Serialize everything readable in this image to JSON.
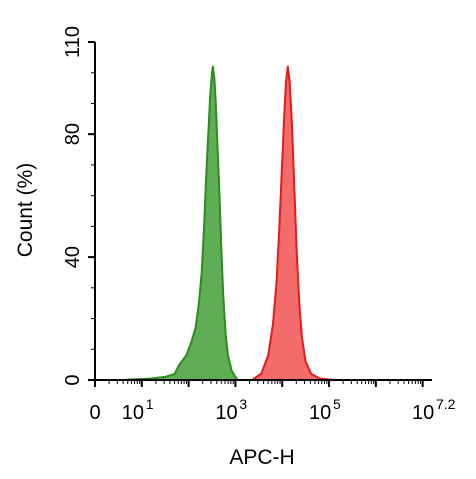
{
  "chart_data": {
    "type": "area",
    "xlabel": "APC-H",
    "ylabel": "Count  (%)",
    "xscale": "log",
    "xlim": [
      0,
      7.2
    ],
    "ylim": [
      0,
      110
    ],
    "grid": false,
    "legend": "none",
    "x_ticks": [
      {
        "base": "0",
        "exp": ""
      },
      {
        "base": "10",
        "exp": "1"
      },
      {
        "base": "10",
        "exp": "3"
      },
      {
        "base": "10",
        "exp": "5"
      },
      {
        "base": "10",
        "exp": "7.2"
      }
    ],
    "y_ticks": [
      "0",
      "40",
      "80",
      "110"
    ],
    "series": [
      {
        "color": "#2e8b1f",
        "fill": "#5fae55",
        "points": [
          [
            0.6,
            0
          ],
          [
            1.2,
            0.5
          ],
          [
            1.5,
            1
          ],
          [
            1.7,
            2
          ],
          [
            1.8,
            5
          ],
          [
            1.95,
            8
          ],
          [
            2.05,
            12
          ],
          [
            2.15,
            17
          ],
          [
            2.22,
            25
          ],
          [
            2.28,
            35
          ],
          [
            2.33,
            50
          ],
          [
            2.38,
            68
          ],
          [
            2.42,
            80
          ],
          [
            2.46,
            92
          ],
          [
            2.5,
            100
          ],
          [
            2.52,
            102
          ],
          [
            2.55,
            98
          ],
          [
            2.58,
            90
          ],
          [
            2.62,
            75
          ],
          [
            2.66,
            60
          ],
          [
            2.7,
            42
          ],
          [
            2.74,
            28
          ],
          [
            2.79,
            15
          ],
          [
            2.84,
            8
          ],
          [
            2.92,
            3
          ],
          [
            3.0,
            1
          ],
          [
            3.05,
            0
          ]
        ]
      },
      {
        "color": "#e31b1b",
        "fill": "#f36b6b",
        "points": [
          [
            3.35,
            0
          ],
          [
            3.55,
            2
          ],
          [
            3.7,
            8
          ],
          [
            3.8,
            18
          ],
          [
            3.88,
            32
          ],
          [
            3.94,
            50
          ],
          [
            3.99,
            68
          ],
          [
            4.04,
            85
          ],
          [
            4.08,
            97
          ],
          [
            4.12,
            102
          ],
          [
            4.16,
            97
          ],
          [
            4.21,
            82
          ],
          [
            4.26,
            62
          ],
          [
            4.31,
            42
          ],
          [
            4.36,
            26
          ],
          [
            4.42,
            14
          ],
          [
            4.5,
            6
          ],
          [
            4.62,
            2
          ],
          [
            4.8,
            0.5
          ],
          [
            5.1,
            0
          ]
        ]
      }
    ]
  }
}
